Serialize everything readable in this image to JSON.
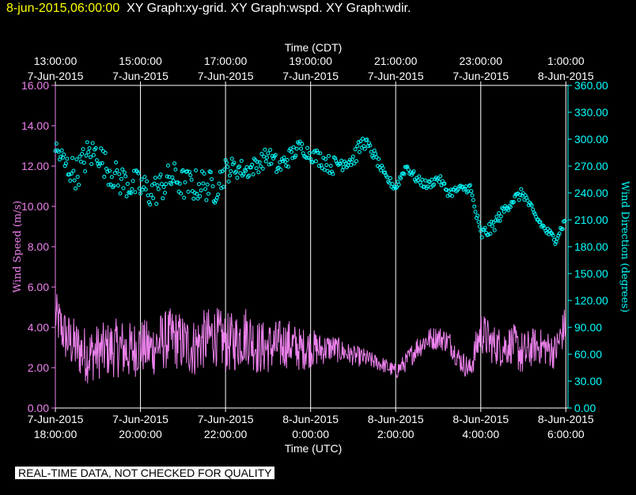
{
  "header": {
    "date": "8-jun-2015,06:00:00",
    "titles": "XY Graph:xy-grid.  XY Graph:wspd.  XY Graph:wdir."
  },
  "footer_note": "REAL-TIME DATA, NOT CHECKED FOR QUALITY",
  "colors": {
    "background": "#000000",
    "axis": "#ffffff",
    "grid": "#ffffff",
    "wind_speed": "#ee82ee",
    "wind_direction": "#00ffff",
    "header_date": "#ffff00"
  },
  "chart_data": {
    "type": "line",
    "x_unit": "hours since 18:00 UTC 7-Jun-2015",
    "xlim": [
      0,
      12.05
    ],
    "top_axis": {
      "label": "Time (CDT)",
      "ticks": [
        {
          "x": 0,
          "time": "13:00:00",
          "date": "7-Jun-2015"
        },
        {
          "x": 2,
          "time": "15:00:00",
          "date": "7-Jun-2015"
        },
        {
          "x": 4,
          "time": "17:00:00",
          "date": "7-Jun-2015"
        },
        {
          "x": 6,
          "time": "19:00:00",
          "date": "7-Jun-2015"
        },
        {
          "x": 8,
          "time": "21:00:00",
          "date": "7-Jun-2015"
        },
        {
          "x": 10,
          "time": "23:00:00",
          "date": "7-Jun-2015"
        },
        {
          "x": 12,
          "time": "1:00:00",
          "date": "8-Jun-2015"
        }
      ]
    },
    "bottom_axis": {
      "label": "Time (UTC)",
      "ticks": [
        {
          "x": 0,
          "date": "7-Jun-2015",
          "time": "18:00:00"
        },
        {
          "x": 2,
          "date": "7-Jun-2015",
          "time": "20:00:00"
        },
        {
          "x": 4,
          "date": "7-Jun-2015",
          "time": "22:00:00"
        },
        {
          "x": 6,
          "date": "8-Jun-2015",
          "time": "0:00:00"
        },
        {
          "x": 8,
          "date": "8-Jun-2015",
          "time": "2:00:00"
        },
        {
          "x": 10,
          "date": "8-Jun-2015",
          "time": "4:00:00"
        },
        {
          "x": 12,
          "date": "8-Jun-2015",
          "time": "6:00:00"
        }
      ]
    },
    "left_axis": {
      "label": "Wind Speed (m/s)",
      "ylim": [
        0,
        16
      ],
      "ticks": [
        "0.00",
        "2.00",
        "4.00",
        "6.00",
        "8.00",
        "10.00",
        "12.00",
        "14.00",
        "16.00"
      ]
    },
    "right_axis": {
      "label": "Wind Direction (degrees)",
      "ylim": [
        0,
        360
      ],
      "ticks": [
        "0.00",
        "30.00",
        "60.00",
        "90.00",
        "120.00",
        "150.00",
        "180.00",
        "210.00",
        "240.00",
        "270.00",
        "300.00",
        "330.00",
        "360.00"
      ]
    },
    "grid": "vertical",
    "series": [
      {
        "name": "Wind Speed",
        "axis": "left",
        "style": "line",
        "x": [
          0,
          0.25,
          0.5,
          0.75,
          1,
          1.25,
          1.5,
          1.75,
          2,
          2.25,
          2.5,
          2.75,
          3,
          3.25,
          3.5,
          3.75,
          4,
          4.25,
          4.5,
          4.75,
          5,
          5.25,
          5.5,
          5.75,
          6,
          6.25,
          6.5,
          6.75,
          7,
          7.25,
          7.5,
          7.75,
          8,
          8.25,
          8.5,
          8.75,
          9,
          9.25,
          9.5,
          9.75,
          10,
          10.25,
          10.5,
          10.75,
          11,
          11.25,
          11.5,
          11.75,
          12
        ],
        "values": [
          4.6,
          3.5,
          3.0,
          2.6,
          2.8,
          2.9,
          3.0,
          2.8,
          3.1,
          2.9,
          3.3,
          3.5,
          3.2,
          3.0,
          3.4,
          3.6,
          3.2,
          3.3,
          3.7,
          3.0,
          3.0,
          3.1,
          3.2,
          2.9,
          3.0,
          2.9,
          3.0,
          2.8,
          2.6,
          2.5,
          2.3,
          2.1,
          1.8,
          2.3,
          3.0,
          3.4,
          3.5,
          3.3,
          2.4,
          1.9,
          3.8,
          3.2,
          3.0,
          3.2,
          2.6,
          3.1,
          3.0,
          2.8,
          4.2
        ],
        "noise": [
          1.2,
          1.3,
          1.4,
          1.4,
          1.4,
          1.4,
          1.5,
          1.5,
          1.4,
          1.4,
          1.5,
          1.5,
          1.5,
          1.5,
          1.5,
          1.5,
          1.5,
          1.5,
          1.5,
          1.4,
          1.3,
          1.3,
          1.2,
          1.1,
          1.0,
          0.8,
          0.7,
          0.6,
          0.5,
          0.5,
          0.4,
          0.4,
          0.4,
          0.5,
          0.6,
          0.6,
          0.6,
          0.6,
          0.6,
          0.6,
          1.1,
          1.0,
          1.0,
          1.0,
          1.2,
          0.9,
          0.9,
          0.9,
          1.0
        ]
      },
      {
        "name": "Wind Direction",
        "axis": "right",
        "style": "markers",
        "x": [
          0,
          0.25,
          0.5,
          0.75,
          1,
          1.25,
          1.5,
          1.75,
          2,
          2.25,
          2.5,
          2.75,
          3,
          3.25,
          3.5,
          3.75,
          4,
          4.25,
          4.5,
          4.75,
          5,
          5.25,
          5.5,
          5.75,
          6,
          6.25,
          6.5,
          6.75,
          7,
          7.25,
          7.5,
          7.75,
          8,
          8.25,
          8.5,
          8.75,
          9,
          9.25,
          9.5,
          9.75,
          10,
          10.25,
          10.5,
          10.75,
          11,
          11.25,
          11.5,
          11.75,
          12
        ],
        "values": [
          290,
          270,
          262,
          282,
          285,
          265,
          255,
          250,
          247,
          240,
          248,
          258,
          250,
          248,
          250,
          245,
          265,
          268,
          265,
          272,
          282,
          268,
          280,
          292,
          283,
          278,
          270,
          275,
          278,
          298,
          282,
          258,
          246,
          270,
          255,
          248,
          257,
          240,
          244,
          246,
          193,
          200,
          218,
          232,
          240,
          216,
          200,
          188,
          210
        ],
        "noise": [
          12,
          16,
          18,
          18,
          16,
          16,
          18,
          18,
          18,
          18,
          18,
          18,
          18,
          18,
          18,
          18,
          14,
          12,
          10,
          10,
          10,
          12,
          10,
          8,
          8,
          10,
          10,
          10,
          10,
          8,
          6,
          5,
          5,
          5,
          5,
          5,
          5,
          5,
          5,
          5,
          8,
          8,
          6,
          6,
          6,
          5,
          5,
          5,
          5
        ]
      }
    ]
  }
}
